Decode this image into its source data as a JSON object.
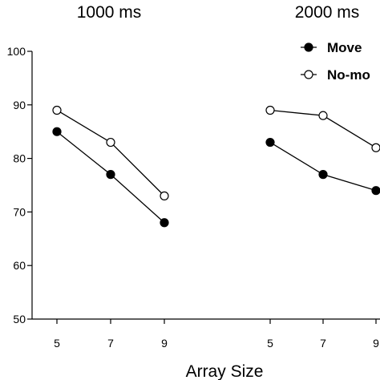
{
  "chart_data": {
    "type": "line",
    "xlabel": "Array Size",
    "ylabel": "",
    "ylim": [
      50,
      100
    ],
    "yticks": [
      50,
      60,
      70,
      80,
      90,
      100
    ],
    "grid": false,
    "legend": {
      "placement": "top-right",
      "entries": [
        "Move",
        "No-mo"
      ]
    },
    "panels": [
      {
        "title": "1000 ms",
        "x": [
          5,
          7,
          9
        ],
        "series": [
          {
            "name": "Move",
            "marker": "filled",
            "values": [
              85,
              77,
              68
            ]
          },
          {
            "name": "No-mo",
            "marker": "open",
            "values": [
              89,
              83,
              73
            ]
          }
        ]
      },
      {
        "title": "2000 ms",
        "x": [
          5,
          7,
          9
        ],
        "series": [
          {
            "name": "Move",
            "marker": "filled",
            "values": [
              83,
              77,
              74
            ]
          },
          {
            "name": "No-mo",
            "marker": "open",
            "values": [
              89,
              88,
              82
            ]
          }
        ]
      }
    ]
  }
}
